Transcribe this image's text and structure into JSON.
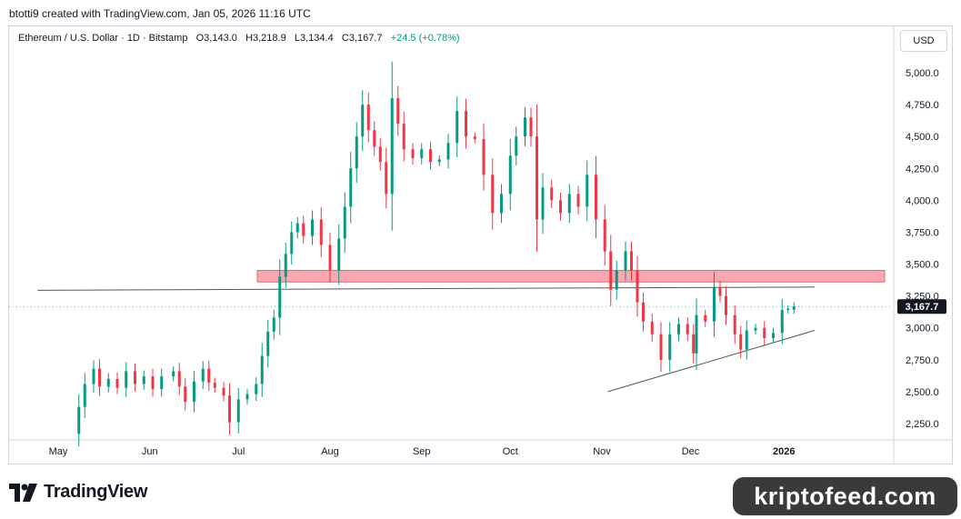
{
  "caption": "btotti9 created with TradingView.com, Jan 05, 2026 11:16 UTC",
  "legend": {
    "symbol": "Ethereum / U.S. Dollar · 1D · Bitstamp",
    "open": "O3,143.0",
    "high": "H3,218.9",
    "low": "L3,134.4",
    "close": "C3,167.7",
    "change": "+24.5 (+0.78%)"
  },
  "currency_button": "USD",
  "brand": "TradingView",
  "watermark": "kriptofeed.com",
  "colors": {
    "up": "#089981",
    "down": "#f23645",
    "zone": "#f7a8b0",
    "price_tag": "#131722"
  },
  "chart_data": {
    "type": "candlestick",
    "ylim": [
      2100,
      5200
    ],
    "yticks": [
      5000,
      4750,
      4500,
      4250,
      4000,
      3750,
      3500,
      3250,
      3000,
      2750,
      2500,
      2250
    ],
    "ytick_labels": [
      "5,000.0",
      "4,750.0",
      "4,500.0",
      "4,250.0",
      "4,000.0",
      "3,750.0",
      "3,500.0",
      "3,250.0",
      "3,000.0",
      "2,750.0",
      "2,500.0",
      "2,250.0"
    ],
    "xtick_labels": [
      "May",
      "Jun",
      "Jul",
      "Aug",
      "Sep",
      "Oct",
      "Nov",
      "Dec",
      "2026"
    ],
    "last_price_label": "3,167.7",
    "last_price": 3167.7,
    "candles": [
      [
        "2025-05-08",
        2170,
        2380
      ],
      [
        "2025-05-10",
        2380,
        2560
      ],
      [
        "2025-05-13",
        2560,
        2680
      ],
      [
        "2025-05-15",
        2680,
        2540
      ],
      [
        "2025-05-18",
        2540,
        2600
      ],
      [
        "2025-05-21",
        2600,
        2530
      ],
      [
        "2025-05-24",
        2530,
        2660
      ],
      [
        "2025-05-27",
        2660,
        2560
      ],
      [
        "2025-05-30",
        2560,
        2620
      ],
      [
        "2025-06-02",
        2620,
        2520
      ],
      [
        "2025-06-05",
        2520,
        2620
      ],
      [
        "2025-06-09",
        2620,
        2660
      ],
      [
        "2025-06-11",
        2660,
        2540
      ],
      [
        "2025-06-13",
        2540,
        2420
      ],
      [
        "2025-06-16",
        2420,
        2580
      ],
      [
        "2025-06-19",
        2580,
        2680
      ],
      [
        "2025-06-21",
        2680,
        2570
      ],
      [
        "2025-06-23",
        2570,
        2530
      ],
      [
        "2025-06-26",
        2530,
        2470
      ],
      [
        "2025-06-28",
        2470,
        2260
      ],
      [
        "2025-07-01",
        2260,
        2440
      ],
      [
        "2025-07-04",
        2440,
        2480
      ],
      [
        "2025-07-07",
        2480,
        2560
      ],
      [
        "2025-07-09",
        2560,
        2780
      ],
      [
        "2025-07-11",
        2780,
        2970
      ],
      [
        "2025-07-13",
        2970,
        3080
      ],
      [
        "2025-07-15",
        3080,
        3400
      ],
      [
        "2025-07-17",
        3400,
        3580
      ],
      [
        "2025-07-19",
        3580,
        3750
      ],
      [
        "2025-07-21",
        3750,
        3820
      ],
      [
        "2025-07-23",
        3820,
        3720
      ],
      [
        "2025-07-26",
        3720,
        3850
      ],
      [
        "2025-07-29",
        3850,
        3650
      ],
      [
        "2025-08-01",
        3650,
        3450
      ],
      [
        "2025-08-04",
        3450,
        3700
      ],
      [
        "2025-08-06",
        3700,
        3950
      ],
      [
        "2025-08-08",
        3950,
        4250
      ],
      [
        "2025-08-10",
        4250,
        4500
      ],
      [
        "2025-08-12",
        4500,
        4750
      ],
      [
        "2025-08-14",
        4750,
        4550
      ],
      [
        "2025-08-16",
        4550,
        4420
      ],
      [
        "2025-08-18",
        4420,
        4300
      ],
      [
        "2025-08-20",
        4300,
        4050
      ],
      [
        "2025-08-22",
        4050,
        4800
      ],
      [
        "2025-08-24",
        4800,
        4600
      ],
      [
        "2025-08-26",
        4600,
        4400
      ],
      [
        "2025-08-29",
        4400,
        4330
      ],
      [
        "2025-09-01",
        4330,
        4400
      ],
      [
        "2025-09-04",
        4400,
        4300
      ],
      [
        "2025-09-07",
        4300,
        4320
      ],
      [
        "2025-09-10",
        4320,
        4450
      ],
      [
        "2025-09-13",
        4450,
        4700
      ],
      [
        "2025-09-16",
        4700,
        4500
      ],
      [
        "2025-09-19",
        4500,
        4480
      ],
      [
        "2025-09-22",
        4480,
        4200
      ],
      [
        "2025-09-25",
        4200,
        3900
      ],
      [
        "2025-09-28",
        3900,
        4050
      ],
      [
        "2025-10-01",
        4050,
        4350
      ],
      [
        "2025-10-03",
        4350,
        4500
      ],
      [
        "2025-10-06",
        4500,
        4650
      ],
      [
        "2025-10-08",
        4650,
        4500
      ],
      [
        "2025-10-10",
        4500,
        3850
      ],
      [
        "2025-10-12",
        3850,
        4100
      ],
      [
        "2025-10-15",
        4100,
        4000
      ],
      [
        "2025-10-18",
        4000,
        3900
      ],
      [
        "2025-10-21",
        3900,
        4050
      ],
      [
        "2025-10-24",
        4050,
        3950
      ],
      [
        "2025-10-27",
        3950,
        4200
      ],
      [
        "2025-10-30",
        4200,
        3850
      ],
      [
        "2025-11-02",
        3850,
        3600
      ],
      [
        "2025-11-04",
        3600,
        3300
      ],
      [
        "2025-11-06",
        3300,
        3450
      ],
      [
        "2025-11-09",
        3450,
        3600
      ],
      [
        "2025-11-11",
        3600,
        3450
      ],
      [
        "2025-11-13",
        3450,
        3200
      ],
      [
        "2025-11-15",
        3200,
        3050
      ],
      [
        "2025-11-18",
        3050,
        2950
      ],
      [
        "2025-11-21",
        2950,
        2750
      ],
      [
        "2025-11-24",
        2750,
        2950
      ],
      [
        "2025-11-27",
        2950,
        3030
      ],
      [
        "2025-11-30",
        3030,
        2950
      ],
      [
        "2025-12-02",
        2950,
        2800
      ],
      [
        "2025-12-03",
        2800,
        3100
      ],
      [
        "2025-12-06",
        3100,
        3050
      ],
      [
        "2025-12-09",
        3050,
        3320
      ],
      [
        "2025-12-11",
        3320,
        3250
      ],
      [
        "2025-12-13",
        3250,
        3100
      ],
      [
        "2025-12-16",
        3100,
        2950
      ],
      [
        "2025-12-18",
        2950,
        2830
      ],
      [
        "2025-12-20",
        2830,
        2980
      ],
      [
        "2025-12-23",
        2980,
        3000
      ],
      [
        "2025-12-26",
        3000,
        2920
      ],
      [
        "2025-12-29",
        2920,
        2960
      ],
      [
        "2026-01-01",
        2960,
        3140
      ],
      [
        "2026-01-03",
        3140,
        3150
      ],
      [
        "2026-01-05",
        3143,
        3167.7
      ]
    ],
    "resistance_zone": [
      3360,
      3450
    ],
    "horizontal_line": {
      "from_date": "2025-04-24",
      "to_date": "2026-01-12",
      "from_price": 3295,
      "to_price": 3320
    },
    "trend_line": {
      "from_date": "2025-11-03",
      "to_date": "2026-01-12",
      "from_price": 2500,
      "to_price": 2980
    }
  }
}
